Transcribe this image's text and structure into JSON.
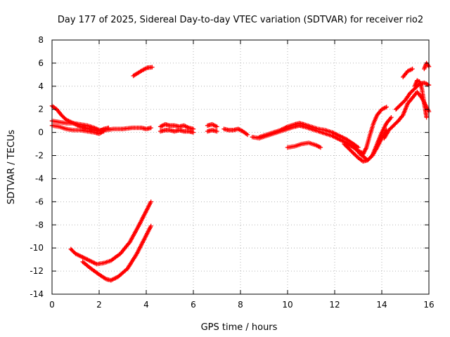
{
  "chart_data": {
    "type": "scatter",
    "title": "Day 177 of 2025, Sidereal Day-to-day VTEC variation (SDTVAR) for receiver rio2",
    "xlabel": "GPS time / hours",
    "ylabel": "SDTVAR / TECUs",
    "xlim": [
      0,
      16
    ],
    "ylim": [
      -14,
      8
    ],
    "xticks": [
      "0",
      "2",
      "4",
      "6",
      "8",
      "10",
      "12",
      "14",
      "16"
    ],
    "yticks": [
      "-14",
      "-12",
      "-10",
      "-8",
      "-6",
      "-4",
      "-2",
      "0",
      "2",
      "4",
      "6",
      "8"
    ],
    "grid": true,
    "marker": "+",
    "color": "#ff0000",
    "series": [
      {
        "name": "s1",
        "x": [
          0.0,
          0.2,
          0.4,
          0.6,
          0.8,
          1.0,
          1.2,
          1.4,
          1.6,
          1.8,
          2.0,
          2.2,
          2.4
        ],
        "y": [
          2.3,
          2.0,
          1.5,
          1.1,
          0.9,
          0.7,
          0.5,
          0.4,
          0.3,
          0.2,
          0.1,
          0.3,
          0.4
        ]
      },
      {
        "name": "s2",
        "x": [
          0.0,
          0.3,
          0.6,
          0.9,
          1.2,
          1.5,
          1.8,
          2.0,
          2.3,
          2.6,
          3.0,
          3.4,
          3.8,
          4.0,
          4.2
        ],
        "y": [
          1.0,
          0.9,
          0.8,
          0.8,
          0.7,
          0.6,
          0.4,
          0.2,
          0.2,
          0.3,
          0.3,
          0.4,
          0.4,
          0.3,
          0.4
        ]
      },
      {
        "name": "s3",
        "x": [
          0.0,
          0.3,
          0.6,
          0.9,
          1.2,
          1.5,
          1.8,
          2.0,
          2.2
        ],
        "y": [
          0.6,
          0.5,
          0.3,
          0.2,
          0.2,
          0.1,
          0.0,
          -0.1,
          0.1
        ]
      },
      {
        "name": "s4",
        "x": [
          3.45,
          3.65,
          3.85,
          4.05,
          4.25
        ],
        "y": [
          4.9,
          5.15,
          5.4,
          5.6,
          5.65
        ]
      },
      {
        "name": "s5",
        "x": [
          0.8,
          1.0,
          1.3,
          1.6,
          1.9,
          2.2,
          2.5,
          2.9,
          3.3,
          3.7,
          4.0,
          4.2
        ],
        "y": [
          -10.1,
          -10.5,
          -10.8,
          -11.1,
          -11.4,
          -11.3,
          -11.1,
          -10.5,
          -9.5,
          -8.0,
          -6.8,
          -6.0
        ]
      },
      {
        "name": "s6",
        "x": [
          1.3,
          1.6,
          2.0,
          2.3,
          2.5,
          2.8,
          3.2,
          3.6,
          3.9,
          4.2
        ],
        "y": [
          -11.2,
          -11.7,
          -12.3,
          -12.7,
          -12.8,
          -12.5,
          -11.8,
          -10.5,
          -9.3,
          -8.1
        ]
      },
      {
        "name": "s7",
        "x": [
          4.6,
          4.8,
          5.0,
          5.2,
          5.4,
          5.6,
          5.8,
          6.0
        ],
        "y": [
          0.5,
          0.7,
          0.6,
          0.6,
          0.5,
          0.6,
          0.4,
          0.3
        ]
      },
      {
        "name": "s8",
        "x": [
          4.6,
          4.8,
          5.0,
          5.2,
          5.4,
          5.6,
          5.8,
          6.0
        ],
        "y": [
          0.1,
          0.2,
          0.2,
          0.1,
          0.2,
          0.1,
          0.1,
          0.0
        ]
      },
      {
        "name": "s9",
        "x": [
          6.6,
          6.8,
          7.0
        ],
        "y": [
          0.6,
          0.7,
          0.5
        ]
      },
      {
        "name": "s10",
        "x": [
          6.6,
          6.8,
          7.0
        ],
        "y": [
          0.1,
          0.2,
          0.1
        ]
      },
      {
        "name": "s11",
        "x": [
          7.3,
          7.5,
          7.7,
          7.9,
          8.1,
          8.3
        ],
        "y": [
          0.3,
          0.2,
          0.2,
          0.3,
          0.1,
          -0.2
        ]
      },
      {
        "name": "s12",
        "x": [
          8.5,
          8.8,
          9.1,
          9.4,
          9.7,
          10.0,
          10.3,
          10.5,
          10.7,
          11.0,
          11.3,
          11.6,
          11.9,
          12.2,
          12.5,
          12.8,
          13.0,
          13.2
        ],
        "y": [
          -0.4,
          -0.5,
          -0.3,
          -0.1,
          0.1,
          0.3,
          0.5,
          0.6,
          0.5,
          0.3,
          0.1,
          -0.1,
          -0.3,
          -0.6,
          -0.9,
          -1.3,
          -1.6,
          -1.8
        ]
      },
      {
        "name": "s13",
        "x": [
          8.8,
          9.1,
          9.4,
          9.7,
          10.0,
          10.3,
          10.5,
          10.7,
          11.0,
          11.3,
          11.6,
          11.9,
          12.2,
          12.5,
          12.8,
          13.0
        ],
        "y": [
          -0.4,
          -0.2,
          0.0,
          0.2,
          0.5,
          0.7,
          0.8,
          0.7,
          0.5,
          0.3,
          0.2,
          0.0,
          -0.3,
          -0.6,
          -1.0,
          -1.3
        ]
      },
      {
        "name": "s14",
        "x": [
          10.0,
          10.3,
          10.6,
          10.9,
          11.2,
          11.4
        ],
        "y": [
          -1.3,
          -1.2,
          -1.0,
          -0.9,
          -1.1,
          -1.3
        ]
      },
      {
        "name": "s15",
        "x": [
          12.4,
          12.7,
          13.0,
          13.2,
          13.4,
          13.6,
          13.8,
          14.0,
          14.2
        ],
        "y": [
          -1.0,
          -1.6,
          -2.2,
          -2.5,
          -2.4,
          -2.0,
          -1.3,
          -0.5,
          0.2
        ]
      },
      {
        "name": "s16",
        "x": [
          13.0,
          13.2,
          13.35,
          13.5,
          13.65,
          13.8,
          14.0,
          14.2
        ],
        "y": [
          -1.6,
          -1.9,
          -1.3,
          -0.2,
          0.8,
          1.5,
          2.0,
          2.2
        ]
      },
      {
        "name": "s17",
        "x": [
          12.8,
          13.1,
          13.4,
          13.6,
          13.8,
          14.0,
          14.2,
          14.4
        ],
        "y": [
          -1.2,
          -1.9,
          -2.4,
          -2.0,
          -1.0,
          0.0,
          0.8,
          1.3
        ]
      },
      {
        "name": "s18",
        "x": [
          14.1,
          14.3,
          14.5,
          14.7,
          14.9,
          15.1,
          15.3,
          15.5,
          15.7,
          15.9,
          16.0
        ],
        "y": [
          -0.5,
          0.2,
          0.6,
          1.0,
          1.5,
          2.5,
          3.0,
          3.5,
          3.0,
          2.2,
          1.8
        ]
      },
      {
        "name": "s19",
        "x": [
          14.6,
          14.8,
          15.0,
          15.2,
          15.4,
          15.6,
          15.8,
          16.0
        ],
        "y": [
          2.0,
          2.4,
          2.8,
          3.4,
          3.8,
          4.2,
          4.3,
          4.1
        ]
      },
      {
        "name": "s20",
        "x": [
          15.4,
          15.5,
          15.6,
          15.7,
          15.8,
          15.9
        ],
        "y": [
          4.0,
          4.5,
          4.4,
          3.8,
          2.5,
          1.3
        ]
      },
      {
        "name": "s21",
        "x": [
          14.9,
          15.1,
          15.3
        ],
        "y": [
          4.8,
          5.3,
          5.5
        ]
      },
      {
        "name": "s22",
        "x": [
          15.8,
          15.9,
          16.0
        ],
        "y": [
          5.5,
          6.0,
          5.7
        ]
      }
    ]
  }
}
